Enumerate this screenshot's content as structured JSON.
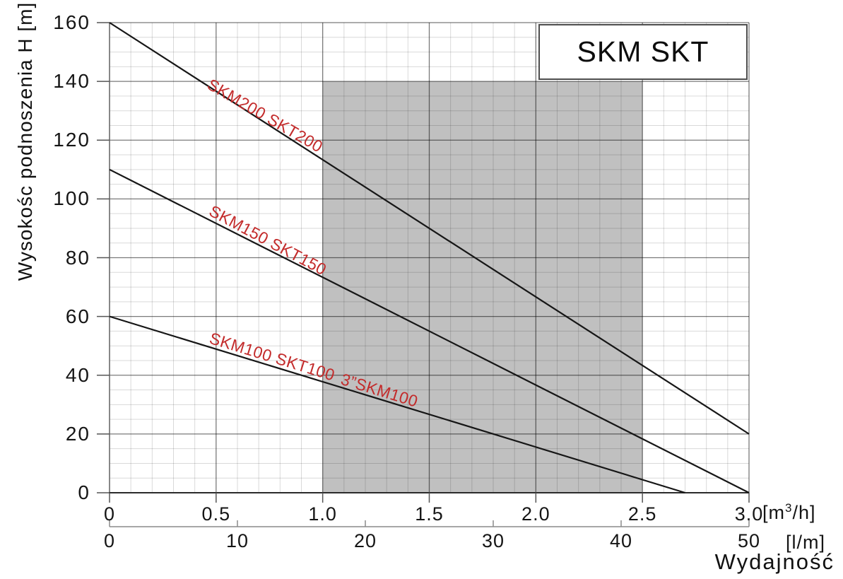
{
  "chart_data": {
    "type": "line",
    "title": "SKM SKT",
    "ylabel": "Wysokośc podnoszenia H [m]",
    "xlabel": "Wydajność",
    "ylim": [
      0,
      160
    ],
    "y_ticks": [
      "160",
      "140",
      "120",
      "100",
      "80",
      "60",
      "40",
      "20",
      "0"
    ],
    "y_tick_values": [
      160,
      140,
      120,
      100,
      80,
      60,
      40,
      20,
      0
    ],
    "x_primary": {
      "unit": "[m³/h]",
      "unit_pre": "[m",
      "unit_sup": "3",
      "unit_post": "/h]",
      "lim": [
        0,
        3.0
      ],
      "ticks": [
        "0",
        "0.5",
        "1.0",
        "1.5",
        "2.0",
        "2.5",
        "3.0"
      ],
      "tick_values": [
        0,
        0.5,
        1.0,
        1.5,
        2.0,
        2.5,
        3.0
      ]
    },
    "x_secondary": {
      "unit": "[l/m]",
      "lim": [
        0,
        50
      ],
      "ticks": [
        "0",
        "10",
        "20",
        "30",
        "40",
        "50"
      ],
      "tick_values": [
        0,
        10,
        20,
        30,
        40,
        50
      ]
    },
    "grid": {
      "minor_x_step": 0.1,
      "minor_y_step": 5,
      "major_x_step": 0.5,
      "major_y_step": 20,
      "grid_on": true
    },
    "series": [
      {
        "name": "SKM200 SKT200",
        "points": [
          [
            0,
            160
          ],
          [
            3.0,
            20
          ]
        ]
      },
      {
        "name": "SKM150 SKT150",
        "points": [
          [
            0,
            110
          ],
          [
            3.0,
            0
          ]
        ]
      },
      {
        "name": "SKM100 SKT100 3”SKM100",
        "points": [
          [
            0,
            60
          ],
          [
            2.7,
            0
          ]
        ]
      }
    ],
    "curve_labels": [
      {
        "text": "SKM200 SKT200"
      },
      {
        "text": "SKM150 SKT150"
      },
      {
        "text": "SKM100 SKT100"
      },
      {
        "text": "3”SKM100"
      }
    ],
    "shaded_region": {
      "x": [
        1.0,
        2.5
      ],
      "y": [
        0,
        140
      ]
    },
    "legend_position": "none"
  },
  "colors": {
    "curve": "#161616",
    "curve_label": "#c32b2b",
    "region_fill": "#c0c0c0",
    "major_grid": "rgba(0,0,0,0.52)",
    "minor_grid": "rgba(0,0,0,0.15)",
    "axis_dark": "#2b2b2b",
    "axis_gray": "#6a6a6a",
    "secondary_axis": "#8a8a8a",
    "tick": "#555555"
  }
}
